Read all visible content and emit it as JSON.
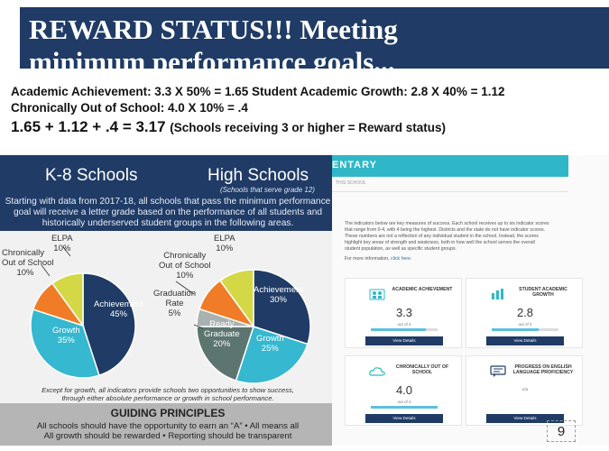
{
  "title": {
    "line1": "REWARD STATUS!!! Meeting",
    "line2": "minimum performance goals..."
  },
  "formulas": {
    "line1": "Academic Achievement:  3.3 X 50% = 1.65    Student Academic Growth:  2.8 X 40% = 1.12",
    "line2": "Chronically Out of School: 4.0 X 10% = .4",
    "line3_main": "1.65 + 1.12 + .4 = 3.17",
    "line3_note": "(Schools receiving 3 or higher = Reward status)"
  },
  "infographic": {
    "k8_title": "K-8 Schools",
    "hs_title": "High Schools",
    "hs_subtitle": "(Schools that serve grade 12)",
    "intro": [
      "Starting with data from 2017-18, all schools that pass the minimum performance",
      "goal will receive a letter grade based on the performance of all students and",
      "historically underserved student groups in the following areas."
    ],
    "k8_pie": [
      {
        "name": "Achievement",
        "value": 45,
        "label": "Achievement",
        "pct": "45%",
        "color": "#1f3b66"
      },
      {
        "name": "Growth",
        "value": 35,
        "label": "Growth",
        "pct": "35%",
        "color": "#35b8d0"
      },
      {
        "name": "Chronically Out of School",
        "value": 10,
        "label": "Chronically Out of School",
        "pct": "10%",
        "color": "#f07c28"
      },
      {
        "name": "ELPA",
        "value": 10,
        "label": "ELPA",
        "pct": "10%",
        "color": "#d4d846"
      }
    ],
    "hs_pie": [
      {
        "name": "Achievement",
        "value": 30,
        "label": "Achievement",
        "pct": "30%",
        "color": "#1f3b66"
      },
      {
        "name": "Growth",
        "value": 25,
        "label": "Growth",
        "pct": "25%",
        "color": "#35b8d0"
      },
      {
        "name": "Ready Graduate",
        "value": 20,
        "label": "Ready Graduate",
        "pct": "20%",
        "color": "#5d7570"
      },
      {
        "name": "Graduation Rate",
        "value": 5,
        "label": "Graduation Rate",
        "pct": "5%",
        "color": "#a9b2b0"
      },
      {
        "name": "Chronically Out of School",
        "value": 10,
        "label": "Chronically Out of School",
        "pct": "10%",
        "color": "#f07c28"
      },
      {
        "name": "ELPA",
        "value": 10,
        "label": "ELPA",
        "pct": "10%",
        "color": "#d4d846"
      }
    ],
    "footnote": [
      "Except for growth, all indicators provide schools two opportunities to show success,",
      "through either absolute performance or growth in school performance."
    ],
    "guiding": {
      "title": "GUIDING PRINCIPLES",
      "line1": "All schools should have the opportunity to earn an “A” • All means all",
      "line2": "All growth should be rewarded • Reporting should be transparent"
    }
  },
  "dashboard": {
    "header": "ENTARY",
    "subheader": "THIS SCHOOL",
    "desc": [
      "The indicators below are key measures of success. Each school receives up to six indicator scores",
      "that range from 0-4, with 4 being the highest. Districts and the state do not have indicator scores.",
      "These numbers are not a reflection of any individual student in the school. Instead, the scores",
      "highlight key areas of strength and weakness, both in how well the school serves the overall",
      "student population, as well as specific student groups."
    ],
    "more_prefix": "For more information,",
    "more_link": "click here.",
    "cards": [
      {
        "name": "ACADEMIC ACHIEVEMENT",
        "score": "3.3",
        "out_of": "out of 4",
        "progress": 0.825,
        "icon": "people-icon",
        "button": "View Details"
      },
      {
        "name": "STUDENT ACADEMIC GROWTH",
        "score": "2.8",
        "out_of": "out of 4",
        "progress": 0.7,
        "icon": "growth-chart-icon",
        "button": "View Details"
      },
      {
        "name": "CHRONICALLY OUT OF SCHOOL",
        "score": "4.0",
        "out_of": "out of 4",
        "progress": 1.0,
        "icon": "cloud-icon",
        "button": "View Details"
      },
      {
        "name": "PROGRESS ON ENGLISH LANGUAGE PROFICIENCY",
        "score": "",
        "out_of": "n/a",
        "progress": 0,
        "icon": "chat-icon",
        "button": "View Details"
      }
    ]
  },
  "page_number": "9"
}
